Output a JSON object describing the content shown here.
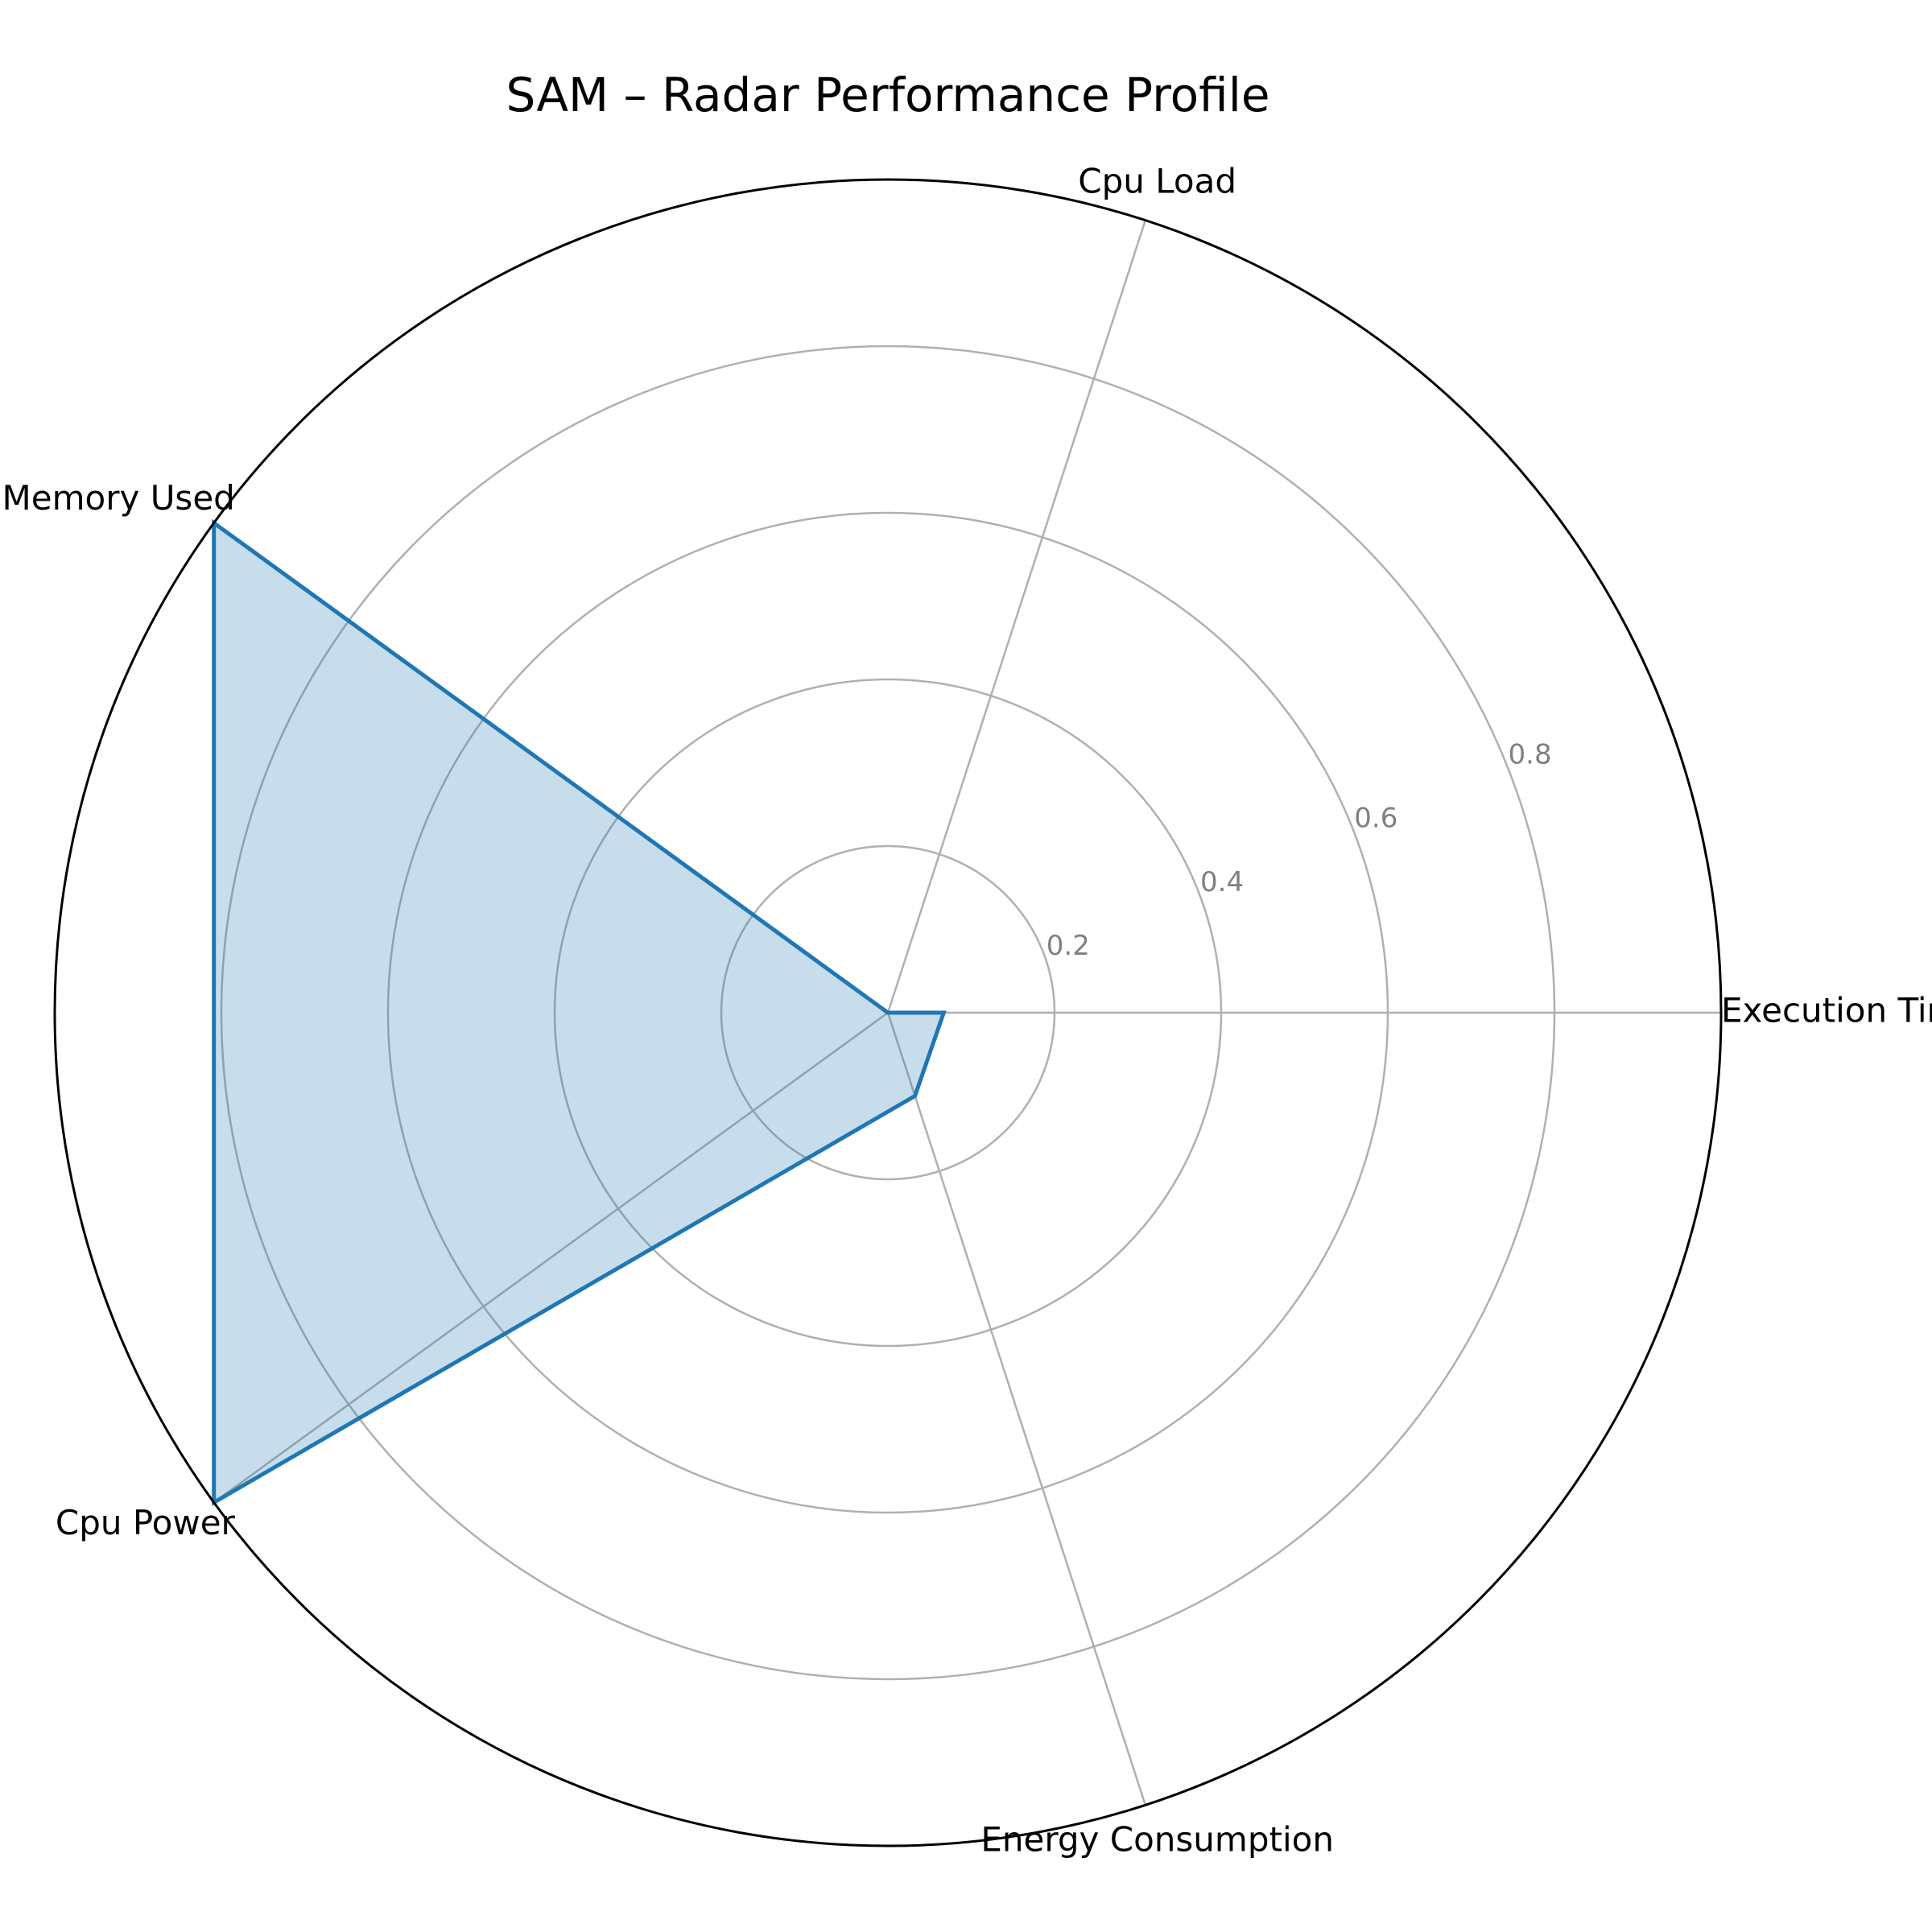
{
  "chart_data": {
    "type": "radar",
    "title": "SAM – Radar Performance Profile",
    "axes": [
      "Execution Time",
      "Cpu Load",
      "Memory Used",
      "Cpu Power",
      "Energy Consumption"
    ],
    "series": [
      {
        "values": [
          0.067,
          0.0,
          1.0,
          1.0,
          0.105
        ]
      }
    ],
    "rlim": [
      0,
      1.0
    ],
    "rticks": [
      0.2,
      0.4,
      0.6,
      0.8
    ],
    "rtick_labels": [
      "0.2",
      "0.4",
      "0.6",
      "0.8"
    ],
    "grid": true,
    "colors": {
      "series_line": "#1f77b4",
      "series_fill": "#1f77b4"
    }
  }
}
